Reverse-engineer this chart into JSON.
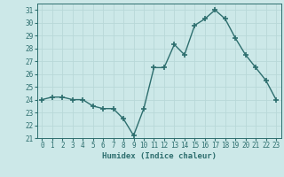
{
  "x": [
    0,
    1,
    2,
    3,
    4,
    5,
    6,
    7,
    8,
    9,
    10,
    11,
    12,
    13,
    14,
    15,
    16,
    17,
    18,
    19,
    20,
    21,
    22,
    23
  ],
  "y": [
    24.0,
    24.2,
    24.2,
    24.0,
    24.0,
    23.5,
    23.3,
    23.3,
    22.5,
    21.2,
    23.3,
    26.5,
    26.5,
    28.3,
    27.5,
    29.8,
    30.3,
    31.0,
    30.3,
    28.8,
    27.5,
    26.5,
    25.5,
    24.0
  ],
  "line_color": "#2d6e6e",
  "marker": "+",
  "marker_size": 4,
  "xlabel": "Humidex (Indice chaleur)",
  "xlim": [
    -0.5,
    23.5
  ],
  "ylim": [
    21,
    31.5
  ],
  "yticks": [
    21,
    22,
    23,
    24,
    25,
    26,
    27,
    28,
    29,
    30,
    31
  ],
  "xticks": [
    0,
    1,
    2,
    3,
    4,
    5,
    6,
    7,
    8,
    9,
    10,
    11,
    12,
    13,
    14,
    15,
    16,
    17,
    18,
    19,
    20,
    21,
    22,
    23
  ],
  "bg_color": "#cce8e8",
  "grid_color": "#b8d8d8",
  "tick_color": "#2d6e6e",
  "label_color": "#2d6e6e",
  "tick_fontsize": 5.5,
  "xlabel_fontsize": 6.5
}
